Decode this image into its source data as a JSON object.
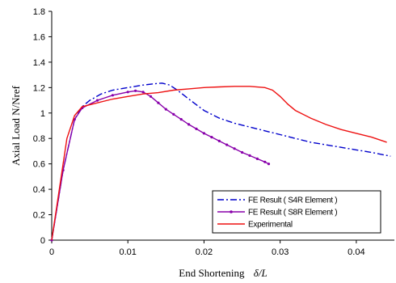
{
  "chart_data": {
    "type": "line",
    "title": "",
    "xlabel": "End Shortening",
    "xlabel_symbol": "δ/L",
    "ylabel": "Axial Load N/Nref",
    "xlim": [
      0,
      0.045
    ],
    "ylim": [
      0,
      1.8
    ],
    "x_ticks": [
      0,
      0.01,
      0.02,
      0.03,
      0.04
    ],
    "x_tick_labels": [
      "0",
      "0.01",
      "0.02",
      "0.03",
      "0.04"
    ],
    "y_ticks": [
      0,
      0.2,
      0.4,
      0.6,
      0.8,
      1,
      1.2,
      1.4,
      1.6,
      1.8
    ],
    "y_tick_labels": [
      "0",
      "0.2",
      "0.4",
      "0.6",
      "0.8",
      "1",
      "1.2",
      "1.4",
      "1.6",
      "1.8"
    ],
    "grid": false,
    "legend_position": "bottom-right",
    "series": [
      {
        "name": "FE Result ( S4R Element )",
        "color": "#0000cc",
        "style": "dashdot",
        "points": [
          [
            0,
            0
          ],
          [
            0.0015,
            0.55
          ],
          [
            0.003,
            0.95
          ],
          [
            0.004,
            1.05
          ],
          [
            0.005,
            1.1
          ],
          [
            0.0065,
            1.15
          ],
          [
            0.008,
            1.18
          ],
          [
            0.01,
            1.2
          ],
          [
            0.012,
            1.22
          ],
          [
            0.0135,
            1.23
          ],
          [
            0.0145,
            1.235
          ],
          [
            0.0155,
            1.22
          ],
          [
            0.0165,
            1.18
          ],
          [
            0.018,
            1.11
          ],
          [
            0.02,
            1.02
          ],
          [
            0.022,
            0.96
          ],
          [
            0.024,
            0.92
          ],
          [
            0.026,
            0.89
          ],
          [
            0.028,
            0.86
          ],
          [
            0.03,
            0.83
          ],
          [
            0.032,
            0.8
          ],
          [
            0.034,
            0.77
          ],
          [
            0.036,
            0.75
          ],
          [
            0.038,
            0.73
          ],
          [
            0.04,
            0.71
          ],
          [
            0.042,
            0.69
          ],
          [
            0.0445,
            0.66
          ]
        ]
      },
      {
        "name": "FE Result ( S8R Element )",
        "color": "#8800aa",
        "style": "solid-markers",
        "points": [
          [
            0,
            0
          ],
          [
            0.0015,
            0.55
          ],
          [
            0.003,
            0.95
          ],
          [
            0.004,
            1.04
          ],
          [
            0.006,
            1.1
          ],
          [
            0.008,
            1.14
          ],
          [
            0.01,
            1.165
          ],
          [
            0.011,
            1.175
          ],
          [
            0.012,
            1.165
          ],
          [
            0.013,
            1.13
          ],
          [
            0.014,
            1.08
          ],
          [
            0.015,
            1.03
          ],
          [
            0.016,
            0.99
          ],
          [
            0.017,
            0.95
          ],
          [
            0.018,
            0.91
          ],
          [
            0.019,
            0.875
          ],
          [
            0.02,
            0.84
          ],
          [
            0.021,
            0.81
          ],
          [
            0.022,
            0.78
          ],
          [
            0.023,
            0.75
          ],
          [
            0.024,
            0.72
          ],
          [
            0.025,
            0.69
          ],
          [
            0.026,
            0.665
          ],
          [
            0.027,
            0.64
          ],
          [
            0.028,
            0.615
          ],
          [
            0.0285,
            0.6
          ]
        ]
      },
      {
        "name": "Experimental",
        "color": "#ee1111",
        "style": "solid",
        "points": [
          [
            0,
            0
          ],
          [
            0.001,
            0.4
          ],
          [
            0.002,
            0.8
          ],
          [
            0.003,
            0.98
          ],
          [
            0.004,
            1.05
          ],
          [
            0.006,
            1.08
          ],
          [
            0.008,
            1.11
          ],
          [
            0.01,
            1.13
          ],
          [
            0.012,
            1.15
          ],
          [
            0.014,
            1.16
          ],
          [
            0.016,
            1.18
          ],
          [
            0.018,
            1.19
          ],
          [
            0.02,
            1.2
          ],
          [
            0.022,
            1.205
          ],
          [
            0.024,
            1.21
          ],
          [
            0.026,
            1.21
          ],
          [
            0.028,
            1.2
          ],
          [
            0.029,
            1.18
          ],
          [
            0.03,
            1.13
          ],
          [
            0.031,
            1.07
          ],
          [
            0.032,
            1.02
          ],
          [
            0.034,
            0.96
          ],
          [
            0.036,
            0.91
          ],
          [
            0.038,
            0.87
          ],
          [
            0.04,
            0.84
          ],
          [
            0.042,
            0.81
          ],
          [
            0.044,
            0.77
          ]
        ]
      }
    ]
  }
}
